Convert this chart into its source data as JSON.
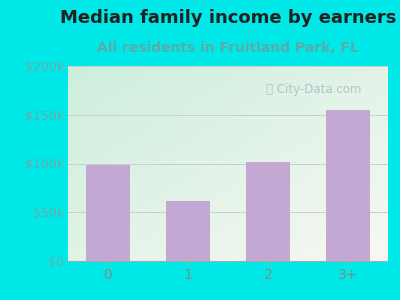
{
  "title": "Median family income by earners",
  "subtitle": "All residents in Fruitland Park, FL",
  "categories": [
    "0",
    "1",
    "2",
    "3+"
  ],
  "values": [
    98000,
    62000,
    102000,
    155000
  ],
  "bar_color": "#c4a8d4",
  "title_fontsize": 13,
  "subtitle_fontsize": 10,
  "subtitle_color": "#5aabab",
  "title_color": "#222222",
  "background_outer": "#00e8e8",
  "ylim": [
    0,
    200000
  ],
  "yticks": [
    0,
    50000,
    100000,
    150000,
    200000
  ],
  "ytick_labels": [
    "$0",
    "$50k",
    "$100k",
    "$150k",
    "$200k"
  ],
  "watermark": "City-Data.com",
  "plot_bg_topleft": "#cceedd",
  "plot_bg_bottomright": "#f8f8f0",
  "ytick_color": "#6aaaaa",
  "xtick_color": "#888888",
  "grid_color": "#cccccc"
}
